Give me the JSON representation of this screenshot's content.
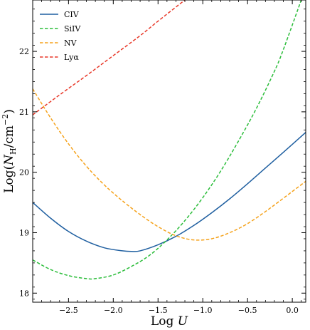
{
  "chart_data": {
    "type": "line",
    "xlabel": "Log U",
    "ylabel": "Log(N_H/cm^-2)",
    "xlim": [
      -2.9,
      0.15
    ],
    "ylim": [
      17.85,
      22.85
    ],
    "x_ticks": [
      -2.5,
      -2.0,
      -1.5,
      -1.0,
      -0.5,
      0.0
    ],
    "x_tick_labels": [
      "−2.5",
      "−2.0",
      "−1.5",
      "−1.0",
      "−0.5",
      "0.0"
    ],
    "y_ticks": [
      18,
      19,
      20,
      21,
      22
    ],
    "y_tick_labels": [
      "18",
      "19",
      "20",
      "21",
      "22"
    ],
    "grid": false,
    "legend_position": "top-left",
    "series": [
      {
        "name": "CIV",
        "label_text": "CIV",
        "color": "#1f5fa0",
        "style": "solid",
        "x": [
          -2.9,
          -2.7,
          -2.5,
          -2.3,
          -2.1,
          -1.9,
          -1.8,
          -1.7,
          -1.5,
          -1.3,
          -1.1,
          -0.9,
          -0.7,
          -0.5,
          -0.3,
          -0.1,
          0.15
        ],
        "y": [
          19.5,
          19.24,
          19.02,
          18.86,
          18.75,
          18.7,
          18.69,
          18.7,
          18.8,
          18.94,
          19.12,
          19.33,
          19.56,
          19.81,
          20.07,
          20.33,
          20.66
        ]
      },
      {
        "name": "SiIV",
        "label_text": "SiIV",
        "color": "#2bbd3a",
        "style": "dashed",
        "x": [
          -2.9,
          -2.7,
          -2.5,
          -2.3,
          -2.2,
          -2.0,
          -1.8,
          -1.6,
          -1.4,
          -1.2,
          -1.0,
          -0.8,
          -0.6,
          -0.4,
          -0.2,
          -0.1,
          0.1
        ],
        "y": [
          18.55,
          18.39,
          18.29,
          18.24,
          18.24,
          18.3,
          18.44,
          18.62,
          18.88,
          19.2,
          19.58,
          20.02,
          20.52,
          21.06,
          21.67,
          22.03,
          22.85
        ]
      },
      {
        "name": "NV",
        "label_text": "NV",
        "color": "#f5a21b",
        "style": "dashed",
        "x": [
          -2.9,
          -2.7,
          -2.5,
          -2.3,
          -2.1,
          -1.9,
          -1.7,
          -1.5,
          -1.3,
          -1.1,
          -0.9,
          -0.7,
          -0.5,
          -0.3,
          -0.1,
          0.15
        ],
        "y": [
          21.38,
          20.9,
          20.47,
          20.1,
          19.79,
          19.53,
          19.3,
          19.1,
          18.95,
          18.88,
          18.9,
          19.0,
          19.15,
          19.35,
          19.57,
          19.85
        ]
      },
      {
        "name": "Lyα",
        "label_text": "Lyα",
        "color": "#e8392a",
        "style": "dashed",
        "x": [
          -2.9,
          -2.6,
          -2.3,
          -2.0,
          -1.7,
          -1.5,
          -1.2
        ],
        "y": [
          20.95,
          21.28,
          21.6,
          21.93,
          22.26,
          22.5,
          22.85
        ]
      }
    ]
  }
}
